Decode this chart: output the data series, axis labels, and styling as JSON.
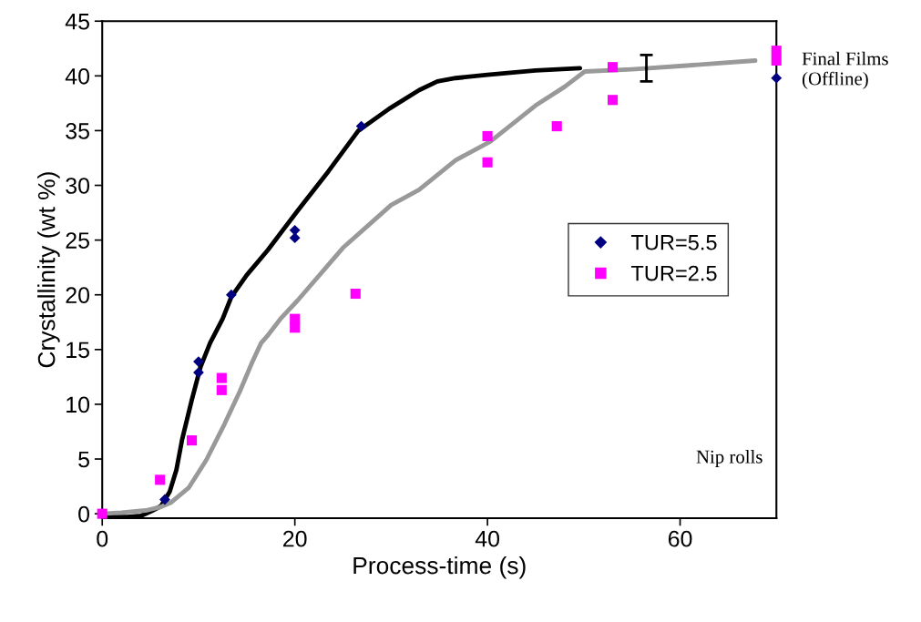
{
  "chart_data": {
    "type": "scatter",
    "xlabel": "Process-time (s)",
    "ylabel": "Crystallinity (wt %)",
    "xlim": [
      0,
      70
    ],
    "xticks": [
      0,
      20,
      40,
      60
    ],
    "ylim": [
      -0.4,
      45
    ],
    "yticks": [
      0,
      5,
      10,
      15,
      20,
      25,
      30,
      35,
      40,
      45
    ],
    "grid": false,
    "legend": "right",
    "series": [
      {
        "name": "TUR=5.5",
        "color": "#000080",
        "marker": "diamond",
        "x": [
          6.5,
          10,
          10,
          13.4,
          20,
          20,
          26.9,
          70
        ],
        "values": [
          1.3,
          13.9,
          12.9,
          20.0,
          25.9,
          25.2,
          35.4,
          39.8
        ]
      },
      {
        "name": "TUR=2.5",
        "color": "#ff00ff",
        "marker": "square",
        "x": [
          0,
          6,
          9.3,
          12.4,
          12.4,
          20,
          20,
          26.3,
          40,
          40,
          47.2,
          53,
          53,
          70,
          70
        ],
        "values": [
          0,
          3.1,
          6.7,
          12.4,
          11.3,
          17.8,
          17.0,
          20.1,
          34.5,
          32.1,
          35.4,
          40.8,
          37.8,
          42.3,
          41.4
        ]
      },
      {
        "type": "line",
        "color": "#000000",
        "x": [
          0,
          1.5,
          2.6,
          4,
          5,
          6.1,
          7,
          7.7,
          8.3,
          9.3,
          10.2,
          11.2,
          12.5,
          13.4,
          15,
          17.2,
          20.3,
          23.5,
          26.6,
          29.8,
          32.9,
          34.8,
          36.7,
          40,
          45,
          49.6
        ],
        "values": [
          -0.2,
          -0.3,
          -0.3,
          -0.2,
          0.2,
          0.7,
          2.0,
          4.0,
          6.8,
          10.4,
          13.4,
          15.6,
          17.8,
          19.8,
          21.8,
          24.1,
          27.7,
          31.3,
          35.0,
          37.0,
          38.7,
          39.5,
          39.8,
          40.1,
          40.5,
          40.7
        ]
      },
      {
        "type": "line",
        "color": "#999999",
        "x": [
          0,
          2,
          4.5,
          6,
          7.1,
          9,
          10.8,
          12.7,
          14.3,
          15.6,
          16.5,
          17.1,
          18.5,
          20.3,
          25,
          30,
          32.9,
          36.7,
          40.3,
          45,
          48,
          50.1,
          55,
          60,
          67.8
        ],
        "values": [
          0,
          0.1,
          0.3,
          0.6,
          1.0,
          2.4,
          4.9,
          8.2,
          11.2,
          13.9,
          15.6,
          16.2,
          17.8,
          19.5,
          24.3,
          28.2,
          29.6,
          32.3,
          34.0,
          37.3,
          39.0,
          40.4,
          40.6,
          40.9,
          41.4
        ]
      },
      {
        "type": "scatter",
        "marker": "circle",
        "color": "#000000",
        "x": [
          56.5
        ],
        "values": [
          40.7
        ],
        "errors": [
          [
            39.5,
            41.9
          ]
        ]
      }
    ],
    "annotations": [
      {
        "text": "Final Films\n(Offline)",
        "x": 70,
        "y": 40.5
      },
      "Nip rolls"
    ]
  }
}
